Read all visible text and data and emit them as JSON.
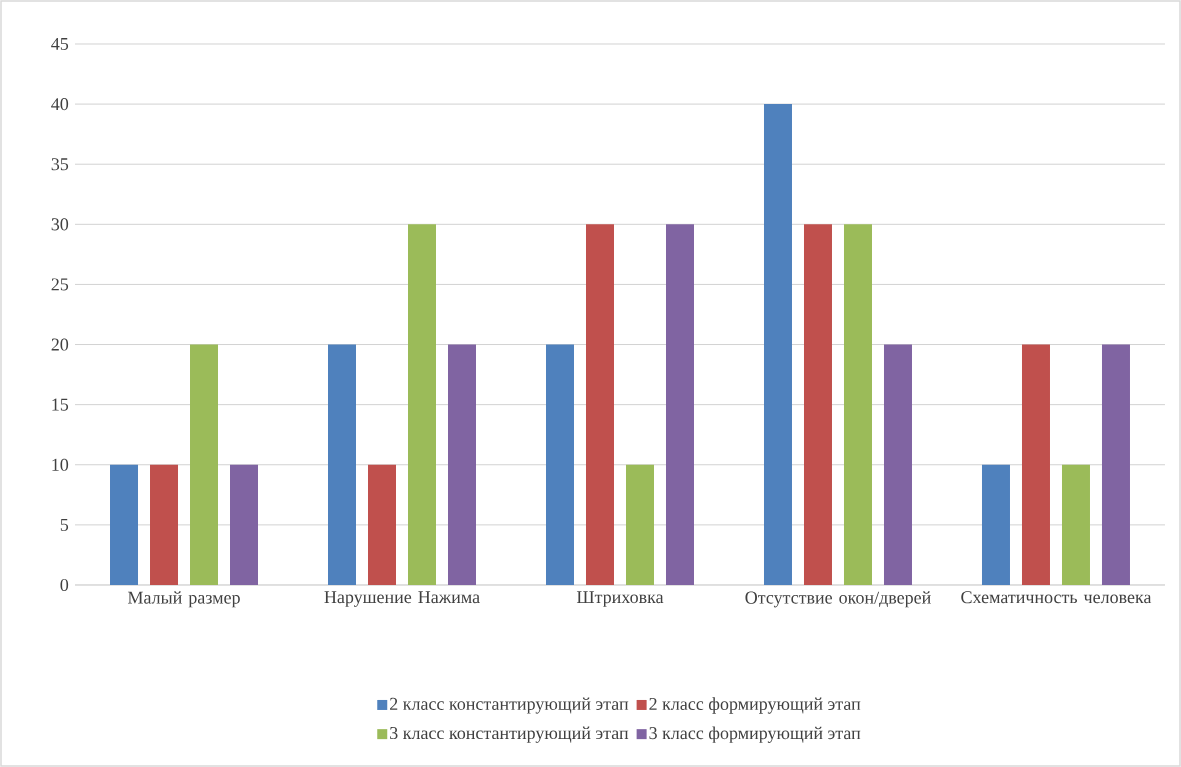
{
  "chart_data": {
    "type": "bar",
    "categories": [
      "Малый размер",
      "Нарушение Нажима",
      "Штриховка",
      "Отсутствие окон/дверей",
      "Схематичность человека"
    ],
    "series": [
      {
        "name": "2 класс константирующий этап",
        "color": "#4f81bd",
        "values": [
          10,
          20,
          20,
          40,
          10
        ]
      },
      {
        "name": "2 класс формирующий этап",
        "color": "#c0504d",
        "values": [
          10,
          10,
          30,
          30,
          20
        ]
      },
      {
        "name": "3 класс константирующий этап",
        "color": "#9bbb59",
        "values": [
          20,
          30,
          10,
          30,
          10
        ]
      },
      {
        "name": "3 класс формирующий этап",
        "color": "#8064a2",
        "values": [
          10,
          20,
          30,
          20,
          20
        ]
      }
    ],
    "ylim": [
      0,
      45
    ],
    "yticks": [
      0,
      5,
      10,
      15,
      20,
      25,
      30,
      35,
      40,
      45
    ],
    "grid": "y",
    "legend": "bottom"
  }
}
